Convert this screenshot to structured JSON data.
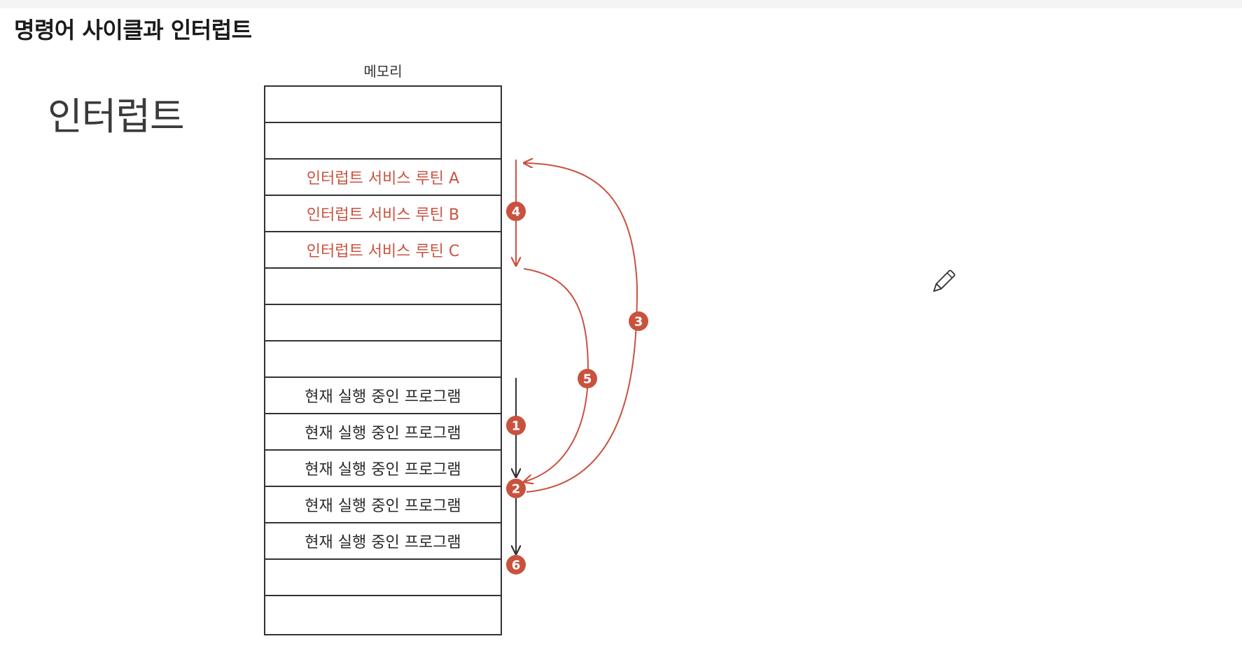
{
  "header": {
    "title": "명령어 사이클과 인터럽트"
  },
  "section": {
    "title": "인터럽트"
  },
  "memory": {
    "label": "메모리",
    "cells": [
      {
        "text": "",
        "kind": "empty"
      },
      {
        "text": "",
        "kind": "empty"
      },
      {
        "text": "인터럽트 서비스 루틴 A",
        "kind": "isr"
      },
      {
        "text": "인터럽트 서비스 루틴 B",
        "kind": "isr"
      },
      {
        "text": "인터럽트 서비스 루틴 C",
        "kind": "isr"
      },
      {
        "text": "",
        "kind": "empty"
      },
      {
        "text": "",
        "kind": "empty"
      },
      {
        "text": "",
        "kind": "empty"
      },
      {
        "text": "현재 실행 중인 프로그램",
        "kind": "program"
      },
      {
        "text": "현재 실행 중인 프로그램",
        "kind": "program"
      },
      {
        "text": "현재 실행 중인 프로그램",
        "kind": "program"
      },
      {
        "text": "현재 실행 중인 프로그램",
        "kind": "program"
      },
      {
        "text": "현재 실행 중인 프로그램",
        "kind": "program"
      },
      {
        "text": "",
        "kind": "empty"
      },
      {
        "text": "",
        "kind": "empty"
      }
    ]
  },
  "steps": [
    "1",
    "2",
    "3",
    "4",
    "5",
    "6"
  ],
  "colors": {
    "accent": "#c9523f",
    "ink": "#333333"
  },
  "icons": {
    "cursor": "pencil-icon"
  }
}
